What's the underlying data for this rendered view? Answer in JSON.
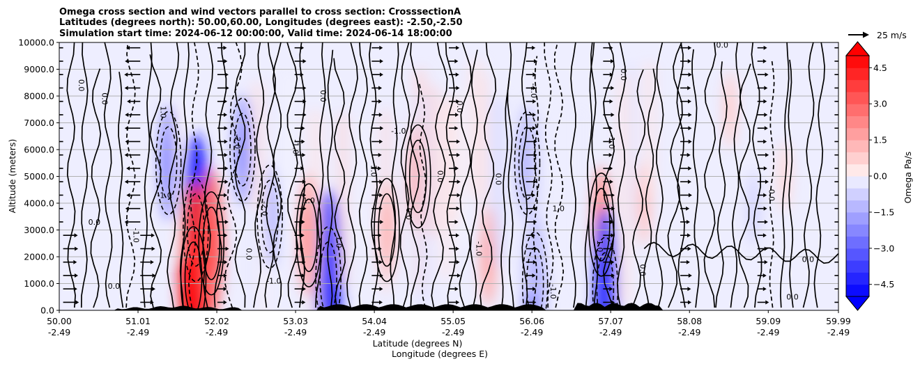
{
  "chart_data": {
    "type": "heatmap",
    "title_lines": [
      "Omega cross section and wind vectors parallel to cross section: CrosssectionA",
      "Latitudes (degrees north): 50.00,60.00, Longitudes (degrees east): -2.50,-2.50",
      "Simulation start time: 2024-06-12 00:00:00, Valid time: 2024-06-14 18:00:00"
    ],
    "ylabel": "Altitude (meters)",
    "xlabel_lat": "Latitude (degrees N)",
    "xlabel_lon": "Longitude (degrees E)",
    "ylim": [
      0,
      10000
    ],
    "yticks": [
      "0.0",
      "1000.0",
      "2000.0",
      "3000.0",
      "4000.0",
      "5000.0",
      "6000.0",
      "7000.0",
      "8000.0",
      "9000.0",
      "10000.0"
    ],
    "xlim": [
      50.0,
      59.99
    ],
    "xticks": [
      {
        "lat": "50.00",
        "lon": "-2.49"
      },
      {
        "lat": "51.01",
        "lon": "-2.49"
      },
      {
        "lat": "52.02",
        "lon": "-2.49"
      },
      {
        "lat": "53.03",
        "lon": "-2.49"
      },
      {
        "lat": "54.04",
        "lon": "-2.49"
      },
      {
        "lat": "55.05",
        "lon": "-2.49"
      },
      {
        "lat": "56.06",
        "lon": "-2.49"
      },
      {
        "lat": "57.07",
        "lon": "-2.49"
      },
      {
        "lat": "58.08",
        "lon": "-2.49"
      },
      {
        "lat": "59.09",
        "lon": "-2.49"
      },
      {
        "lat": "59.99",
        "lon": "-2.49"
      }
    ],
    "colorbar": {
      "label": "Omega Pa/s",
      "range": [
        -5.0,
        5.0
      ],
      "ticks": [
        "-4.5",
        "-3.0",
        "-1.5",
        "0.0",
        "1.5",
        "3.0",
        "4.5"
      ],
      "extend": "both"
    },
    "vector_key": {
      "label": "25 m/s"
    },
    "omega_features": [
      {
        "lat": 51.75,
        "alt": 3000,
        "omega": -4.5
      },
      {
        "lat": 51.72,
        "alt": 1200,
        "omega": 4.5
      },
      {
        "lat": 51.95,
        "alt": 2500,
        "omega": 3.0
      },
      {
        "lat": 51.4,
        "alt": 5500,
        "omega": -2.0
      },
      {
        "lat": 52.35,
        "alt": 6000,
        "omega": -1.8
      },
      {
        "lat": 52.7,
        "alt": 3500,
        "omega": -1.5
      },
      {
        "lat": 53.45,
        "alt": 1200,
        "omega": -4.0
      },
      {
        "lat": 53.2,
        "alt": 2800,
        "omega": 2.2
      },
      {
        "lat": 54.6,
        "alt": 5000,
        "omega": 1.8
      },
      {
        "lat": 54.2,
        "alt": 3000,
        "omega": 1.5
      },
      {
        "lat": 55.5,
        "alt": 2000,
        "omega": 1.4
      },
      {
        "lat": 56.0,
        "alt": 5500,
        "omega": -2.0
      },
      {
        "lat": 56.1,
        "alt": 1000,
        "omega": -2.6
      },
      {
        "lat": 56.95,
        "alt": 3200,
        "omega": 2.0
      },
      {
        "lat": 57.0,
        "alt": 800,
        "omega": -3.5
      },
      {
        "lat": 57.5,
        "alt": 4000,
        "omega": 0.9
      },
      {
        "lat": 58.6,
        "alt": 7500,
        "omega": 0.7
      },
      {
        "lat": 59.3,
        "alt": 5000,
        "omega": 0.5
      },
      {
        "lat": 58.9,
        "alt": 3800,
        "omega": -0.6
      }
    ],
    "contour_labels": [
      {
        "text": "0.0",
        "lat": 50.25,
        "alt": 8400
      },
      {
        "text": "0.0",
        "lat": 50.55,
        "alt": 7900
      },
      {
        "text": "0.0",
        "lat": 50.45,
        "alt": 3200
      },
      {
        "text": "0.0",
        "lat": 50.7,
        "alt": 800
      },
      {
        "text": "1.0",
        "lat": 51.3,
        "alt": 7400
      },
      {
        "text": "-1.0",
        "lat": 51.35,
        "alt": 4200
      },
      {
        "text": "-1.0",
        "lat": 50.95,
        "alt": 2800
      },
      {
        "text": "-2.0",
        "lat": 52.25,
        "alt": 6300
      },
      {
        "text": "-2.0",
        "lat": 52.6,
        "alt": 3800
      },
      {
        "text": "-1.0",
        "lat": 52.75,
        "alt": 1000
      },
      {
        "text": "0.0",
        "lat": 52.4,
        "alt": 2100
      },
      {
        "text": "-1.0",
        "lat": 53.0,
        "alt": 6100
      },
      {
        "text": "1.0",
        "lat": 53.2,
        "alt": 4000
      },
      {
        "text": "-1.0",
        "lat": 53.55,
        "alt": 2600
      },
      {
        "text": "0.0",
        "lat": 53.35,
        "alt": 8000
      },
      {
        "text": "1.0",
        "lat": 54.0,
        "alt": 5200
      },
      {
        "text": "0.0",
        "lat": 54.45,
        "alt": 3600
      },
      {
        "text": "-1.0",
        "lat": 54.35,
        "alt": 6600
      },
      {
        "text": "0.0",
        "lat": 54.85,
        "alt": 5000
      },
      {
        "text": "0.0",
        "lat": 55.1,
        "alt": 7600
      },
      {
        "text": "-1.0",
        "lat": 55.35,
        "alt": 2300
      },
      {
        "text": "0.0",
        "lat": 55.6,
        "alt": 4900
      },
      {
        "text": "-1.0",
        "lat": 56.05,
        "alt": 8200
      },
      {
        "text": "1.0",
        "lat": 56.4,
        "alt": 3700
      },
      {
        "text": "-1.0",
        "lat": 56.3,
        "alt": 700
      },
      {
        "text": "1.0",
        "lat": 56.9,
        "alt": 2400
      },
      {
        "text": "-1.0",
        "lat": 57.05,
        "alt": 6300
      },
      {
        "text": "0.0",
        "lat": 57.45,
        "alt": 1500
      },
      {
        "text": "0.0",
        "lat": 57.2,
        "alt": 8800
      },
      {
        "text": "0.0",
        "lat": 58.5,
        "alt": 9800
      },
      {
        "text": "0.0",
        "lat": 59.6,
        "alt": 1800
      },
      {
        "text": "0.0",
        "lat": 59.1,
        "alt": 4300
      },
      {
        "text": "0.0",
        "lat": 59.4,
        "alt": 400
      }
    ]
  }
}
